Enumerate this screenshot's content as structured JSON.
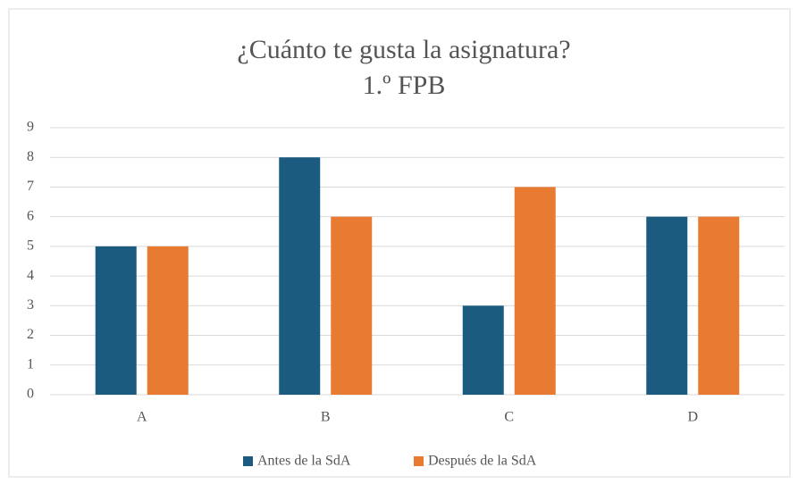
{
  "chart_data": {
    "type": "bar",
    "title": "¿Cuánto te gusta la asignatura?",
    "subtitle": "1.º FPB",
    "categories": [
      "A",
      "B",
      "C",
      "D"
    ],
    "series": [
      {
        "name": "Antes de la SdA",
        "color": "#1b5b80",
        "values": [
          5,
          8,
          3,
          6
        ]
      },
      {
        "name": "Después de la SdA",
        "color": "#e97a32",
        "values": [
          5,
          6,
          7,
          6
        ]
      }
    ],
    "ylim": [
      0,
      9
    ],
    "yticks": [
      0,
      1,
      2,
      3,
      4,
      5,
      6,
      7,
      8,
      9
    ],
    "grid": true,
    "legend": "bottom"
  }
}
